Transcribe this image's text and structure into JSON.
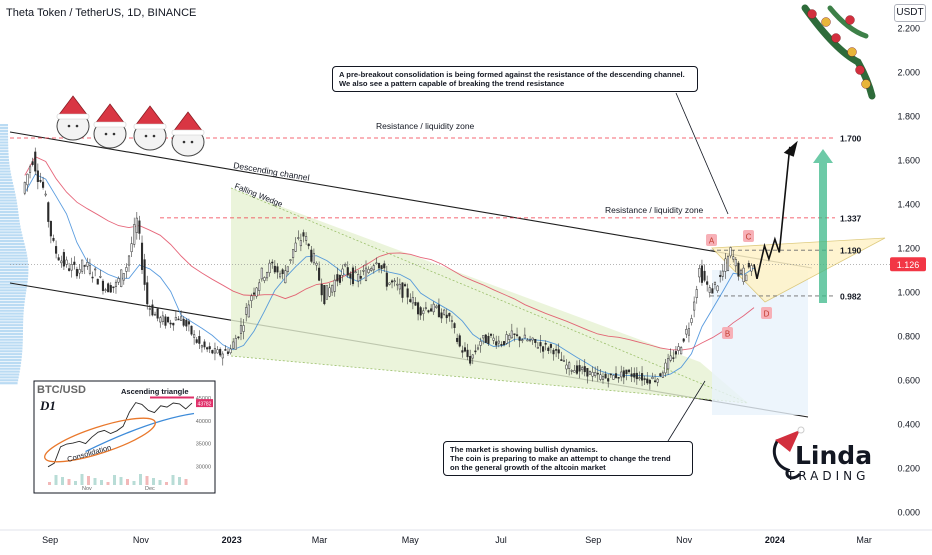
{
  "header": {
    "title": "Theta Token / TetherUS, 1D, BINANCE",
    "currency_badge": "USDT"
  },
  "chart_data": {
    "type": "candlestick",
    "title": "Theta Token / TetherUS, 1D, BINANCE",
    "y_axis": {
      "ticks": [
        "2.200",
        "2.000",
        "1.800",
        "1.600",
        "1.400",
        "1.200",
        "1.000",
        "0.800",
        "0.600",
        "0.400",
        "0.200",
        "0.000"
      ],
      "ylim": [
        0.0,
        2.2
      ]
    },
    "x_axis": {
      "ticks": [
        "Sep",
        "Nov",
        "2023",
        "Mar",
        "May",
        "Jul",
        "Sep",
        "Nov",
        "2024",
        "Mar"
      ]
    },
    "current_price": {
      "label": "1.126",
      "value": 1.126,
      "color": "#f23645"
    },
    "price_levels": [
      {
        "label": "1.700",
        "value": 1.7,
        "note": "Resistance / liquidity zone"
      },
      {
        "label": "1.337",
        "value": 1.337,
        "note": "Resistance / liquidity zone"
      },
      {
        "label": "1.190",
        "value": 1.19,
        "note": ""
      },
      {
        "label": "0.982",
        "value": 0.982,
        "note": ""
      }
    ],
    "close_series": [
      {
        "date": "2022-08-15",
        "close": 1.45
      },
      {
        "date": "2022-08-22",
        "close": 1.62
      },
      {
        "date": "2022-08-29",
        "close": 1.47
      },
      {
        "date": "2022-09-05",
        "close": 1.2
      },
      {
        "date": "2022-09-12",
        "close": 1.13
      },
      {
        "date": "2022-09-19",
        "close": 1.1
      },
      {
        "date": "2022-09-26",
        "close": 1.12
      },
      {
        "date": "2022-10-03",
        "close": 1.08
      },
      {
        "date": "2022-10-10",
        "close": 1.02
      },
      {
        "date": "2022-10-17",
        "close": 1.03
      },
      {
        "date": "2022-10-24",
        "close": 1.12
      },
      {
        "date": "2022-10-31",
        "close": 1.32
      },
      {
        "date": "2022-11-07",
        "close": 0.95
      },
      {
        "date": "2022-11-14",
        "close": 0.88
      },
      {
        "date": "2022-11-21",
        "close": 0.86
      },
      {
        "date": "2022-11-28",
        "close": 0.89
      },
      {
        "date": "2022-12-05",
        "close": 0.83
      },
      {
        "date": "2022-12-12",
        "close": 0.76
      },
      {
        "date": "2022-12-19",
        "close": 0.73
      },
      {
        "date": "2022-12-26",
        "close": 0.72
      },
      {
        "date": "2023-01-02",
        "close": 0.74
      },
      {
        "date": "2023-01-09",
        "close": 0.84
      },
      {
        "date": "2023-01-16",
        "close": 0.99
      },
      {
        "date": "2023-01-23",
        "close": 1.08
      },
      {
        "date": "2023-01-30",
        "close": 1.12
      },
      {
        "date": "2023-02-06",
        "close": 1.07
      },
      {
        "date": "2023-02-13",
        "close": 1.19
      },
      {
        "date": "2023-02-20",
        "close": 1.26
      },
      {
        "date": "2023-02-27",
        "close": 1.14
      },
      {
        "date": "2023-03-06",
        "close": 0.98
      },
      {
        "date": "2023-03-13",
        "close": 1.05
      },
      {
        "date": "2023-03-20",
        "close": 1.1
      },
      {
        "date": "2023-03-27",
        "close": 1.06
      },
      {
        "date": "2023-04-03",
        "close": 1.09
      },
      {
        "date": "2023-04-10",
        "close": 1.16
      },
      {
        "date": "2023-04-17",
        "close": 1.05
      },
      {
        "date": "2023-04-24",
        "close": 1.02
      },
      {
        "date": "2023-05-01",
        "close": 0.99
      },
      {
        "date": "2023-05-08",
        "close": 0.92
      },
      {
        "date": "2023-05-15",
        "close": 0.93
      },
      {
        "date": "2023-05-22",
        "close": 0.91
      },
      {
        "date": "2023-05-29",
        "close": 0.88
      },
      {
        "date": "2023-06-05",
        "close": 0.75
      },
      {
        "date": "2023-06-12",
        "close": 0.69
      },
      {
        "date": "2023-06-19",
        "close": 0.78
      },
      {
        "date": "2023-06-26",
        "close": 0.79
      },
      {
        "date": "2023-07-03",
        "close": 0.77
      },
      {
        "date": "2023-07-10",
        "close": 0.8
      },
      {
        "date": "2023-07-17",
        "close": 0.79
      },
      {
        "date": "2023-07-24",
        "close": 0.77
      },
      {
        "date": "2023-07-31",
        "close": 0.75
      },
      {
        "date": "2023-08-07",
        "close": 0.74
      },
      {
        "date": "2023-08-14",
        "close": 0.67
      },
      {
        "date": "2023-08-21",
        "close": 0.65
      },
      {
        "date": "2023-08-28",
        "close": 0.64
      },
      {
        "date": "2023-09-04",
        "close": 0.62
      },
      {
        "date": "2023-09-11",
        "close": 0.61
      },
      {
        "date": "2023-09-18",
        "close": 0.62
      },
      {
        "date": "2023-09-25",
        "close": 0.63
      },
      {
        "date": "2023-10-02",
        "close": 0.62
      },
      {
        "date": "2023-10-09",
        "close": 0.6
      },
      {
        "date": "2023-10-16",
        "close": 0.61
      },
      {
        "date": "2023-10-23",
        "close": 0.68
      },
      {
        "date": "2023-10-30",
        "close": 0.74
      },
      {
        "date": "2023-11-06",
        "close": 0.85
      },
      {
        "date": "2023-11-13",
        "close": 1.1
      },
      {
        "date": "2023-11-20",
        "close": 1.0
      },
      {
        "date": "2023-11-27",
        "close": 1.06
      },
      {
        "date": "2023-12-04",
        "close": 1.18
      },
      {
        "date": "2023-12-11",
        "close": 1.07
      },
      {
        "date": "2023-12-18",
        "close": 1.126
      }
    ],
    "projection": [
      {
        "date": "2023-12-20",
        "value": 1.06
      },
      {
        "date": "2023-12-25",
        "value": 1.21
      },
      {
        "date": "2023-12-28",
        "value": 1.15
      },
      {
        "date": "2024-01-01",
        "value": 1.24
      },
      {
        "date": "2024-01-04",
        "value": 1.18
      },
      {
        "date": "2024-01-11",
        "value": 1.66
      }
    ],
    "annotations": [
      {
        "text": "Resistance / liquidity zone"
      },
      {
        "text": "Resistance / liquidity zone"
      },
      {
        "text": "Descending channel"
      },
      {
        "text": "Falling Wedge"
      }
    ],
    "wave_labels": [
      "A",
      "B",
      "C",
      "D"
    ],
    "callouts": [
      {
        "lines": [
          "A pre-breakout consolidation is being formed against the resistance of the descending channel.",
          "We also see a pattern capable of breaking the trend resistance"
        ]
      },
      {
        "lines": [
          "The market is showing bullish dynamics.",
          "The coin is preparing to make an attempt to change the trend",
          "on the general growth of the altcoin market"
        ]
      }
    ],
    "inset": {
      "title": "BTC/USD",
      "timeframe": "D1",
      "pattern": "Ascending triangle",
      "zone": "Consolidation",
      "y_ticks": [
        "45000",
        "40000",
        "35000",
        "30000"
      ],
      "x_ticks": [
        "Nov",
        "Dec"
      ],
      "price_tag": "43782",
      "series": [
        29800,
        30600,
        34200,
        34800,
        35000,
        35400,
        34900,
        36300,
        37400,
        37800,
        37100,
        37700,
        38700,
        41800,
        43900,
        43500,
        42200,
        41700,
        43200,
        42900,
        43800,
        43600,
        42500,
        43782
      ]
    },
    "logo": {
      "name": "Linda Trading",
      "lettering": "Linda TRADING"
    }
  },
  "colors": {
    "up": "#26a69a",
    "down": "#ef5350",
    "candle": "#2b2b2b",
    "resistance": "#f23645",
    "channel": "#1f1f1f",
    "wedge": "#e6f1d2",
    "triangle": "#fff3c8",
    "ma_blue": "#3d8bd9",
    "ma_red": "#e0415a",
    "arrow": "#3cb88a"
  },
  "decorations": {
    "icons": [
      "santa-cats-icon",
      "christmas-garland-icon",
      "santa-hat-icon"
    ]
  }
}
